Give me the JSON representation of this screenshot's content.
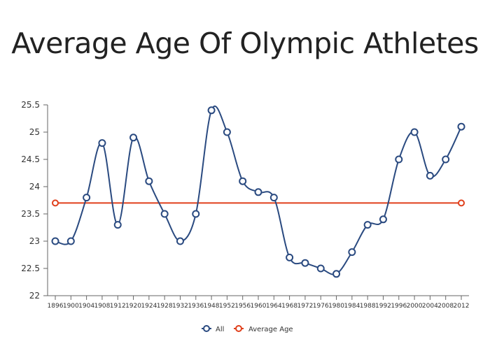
{
  "chart_data": {
    "type": "line",
    "title": "Average Age Of Olympic Athletes",
    "xlabel": "",
    "ylabel": "",
    "categories": [
      "1896",
      "1900",
      "1904",
      "1908",
      "1912",
      "1920",
      "1924",
      "1928",
      "1932",
      "1936",
      "1948",
      "1952",
      "1956",
      "1960",
      "1964",
      "1968",
      "1972",
      "1976",
      "1980",
      "1984",
      "1988",
      "1992",
      "1996",
      "2000",
      "2004",
      "2008",
      "2012"
    ],
    "ylim": [
      22,
      25.5
    ],
    "yticks": [
      "22",
      "22.5",
      "23",
      "23.5",
      "24",
      "24.5",
      "25",
      "25.5"
    ],
    "grid": false,
    "legend_position": "bottom",
    "series": [
      {
        "name": "All",
        "color": "#2a4a80",
        "smooth": true,
        "values": [
          23.0,
          23.0,
          23.8,
          24.8,
          23.3,
          24.9,
          24.1,
          23.5,
          23.0,
          23.5,
          25.4,
          25.0,
          24.1,
          23.9,
          23.8,
          22.7,
          22.6,
          22.5,
          22.4,
          22.8,
          23.3,
          23.4,
          24.5,
          25.0,
          24.2,
          24.5,
          25.1
        ]
      },
      {
        "name": "Average Age",
        "color": "#e0401c",
        "constant": 23.7,
        "values": [
          23.7,
          23.7,
          23.7,
          23.7,
          23.7,
          23.7,
          23.7,
          23.7,
          23.7,
          23.7,
          23.7,
          23.7,
          23.7,
          23.7,
          23.7,
          23.7,
          23.7,
          23.7,
          23.7,
          23.7,
          23.7,
          23.7,
          23.7,
          23.7,
          23.7,
          23.7,
          23.7
        ]
      }
    ]
  }
}
